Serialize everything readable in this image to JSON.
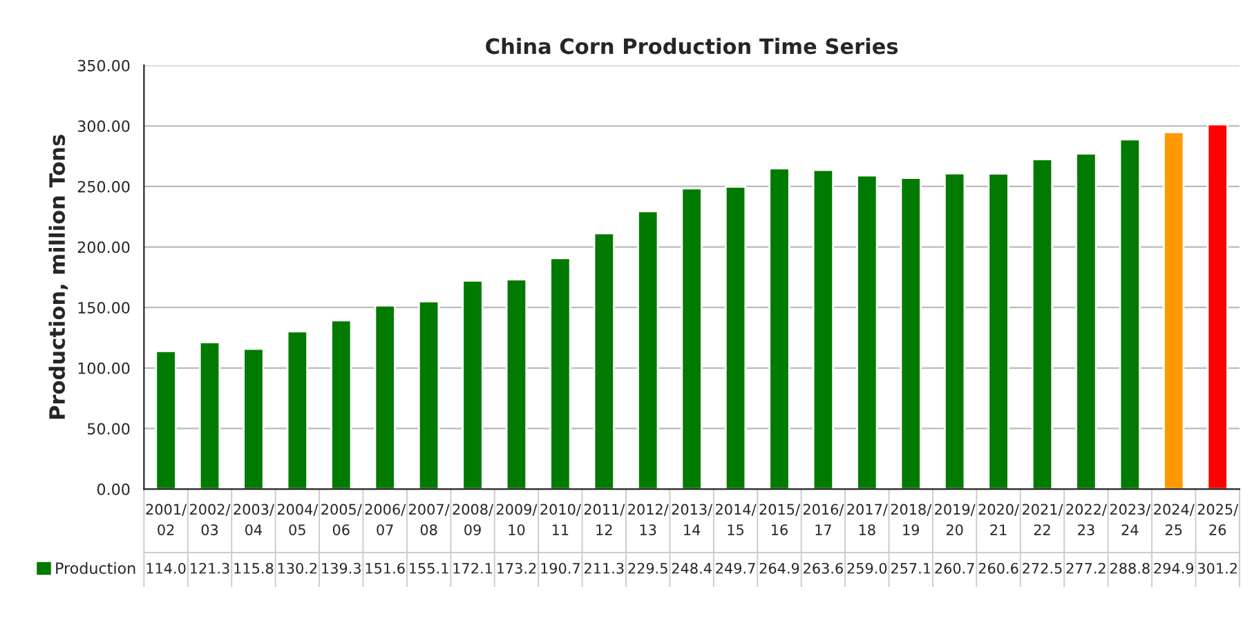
{
  "chart_data": {
    "type": "bar",
    "title": "China Corn Production Time Series",
    "ylabel": "Production, million Tons",
    "categories": [
      "2001/\n02",
      "2002/\n03",
      "2003/\n04",
      "2004/\n05",
      "2005/\n06",
      "2006/\n07",
      "2007/\n08",
      "2008/\n09",
      "2009/\n10",
      "2010/\n11",
      "2011/\n12",
      "2012/\n13",
      "2013/\n14",
      "2014/\n15",
      "2015/\n16",
      "2016/\n17",
      "2017/\n18",
      "2018/\n19",
      "2019/\n20",
      "2020/\n21",
      "2021/\n22",
      "2022/\n23",
      "2023/\n24",
      "2024/\n25",
      "2025/\n26"
    ],
    "series": [
      {
        "name": "Production",
        "values": [
          114.0,
          121.3,
          115.8,
          130.2,
          139.3,
          151.6,
          155.1,
          172.1,
          173.2,
          190.7,
          211.3,
          229.5,
          248.4,
          249.7,
          264.9,
          263.6,
          259.0,
          257.1,
          260.7,
          260.6,
          272.5,
          277.2,
          288.8,
          294.9,
          301.2
        ],
        "value_labels": [
          "114.0",
          "121.3",
          "115.8",
          "130.2",
          "139.3",
          "151.6",
          "155.1",
          "172.1",
          "173.2",
          "190.7",
          "211.3",
          "229.5",
          "248.4",
          "249.7",
          "264.9",
          "263.6",
          "259.0",
          "257.1",
          "260.7",
          "260.6",
          "272.5",
          "277.2",
          "288.8",
          "294.9",
          "301.2"
        ],
        "colors": [
          "#007a00",
          "#007a00",
          "#007a00",
          "#007a00",
          "#007a00",
          "#007a00",
          "#007a00",
          "#007a00",
          "#007a00",
          "#007a00",
          "#007a00",
          "#007a00",
          "#007a00",
          "#007a00",
          "#007a00",
          "#007a00",
          "#007a00",
          "#007a00",
          "#007a00",
          "#007a00",
          "#007a00",
          "#007a00",
          "#007a00",
          "#ff9900",
          "#ff0000"
        ],
        "color": "#007a00"
      }
    ],
    "ylim": [
      0,
      350
    ],
    "yticks": [
      {
        "value": 0,
        "label": "0.00"
      },
      {
        "value": 50,
        "label": "50.00"
      },
      {
        "value": 100,
        "label": "100.00"
      },
      {
        "value": 150,
        "label": "150.00"
      },
      {
        "value": 200,
        "label": "200.00"
      },
      {
        "value": 250,
        "label": "250.00"
      },
      {
        "value": 300,
        "label": "300.00"
      },
      {
        "value": 350,
        "label": "350.00"
      }
    ],
    "grid": "y",
    "legend": "bottom"
  }
}
